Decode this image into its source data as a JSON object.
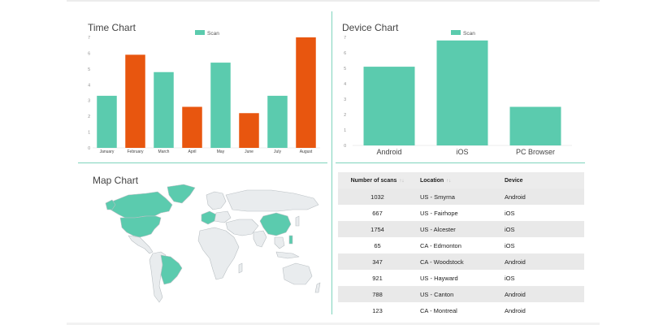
{
  "colors": {
    "teal": "#5bcbae",
    "orange": "#e8560f",
    "divider": "#7fd3bd",
    "map_land": "#e9ecee",
    "map_highlight": "#5bcbae"
  },
  "time_chart": {
    "title": "Time Chart",
    "chart_data": {
      "type": "bar",
      "title": "Time Chart",
      "legend": "Scan",
      "legend_position": "top-center",
      "categories": [
        "January",
        "February",
        "March",
        "April",
        "May",
        "June",
        "July",
        "August"
      ],
      "values": [
        3.3,
        5.9,
        4.8,
        2.6,
        5.4,
        2.2,
        3.3,
        7
      ],
      "bar_colors": [
        "teal",
        "orange",
        "teal",
        "orange",
        "teal",
        "orange",
        "teal",
        "orange"
      ],
      "y_ticks": [
        "0",
        "1",
        "2",
        "3",
        "4",
        "5",
        "6",
        "7"
      ],
      "ylim": [
        0,
        7
      ]
    }
  },
  "device_chart": {
    "title": "Device Chart",
    "chart_data": {
      "type": "bar",
      "title": "Device Chart",
      "legend": "Scan",
      "legend_position": "top-center",
      "categories": [
        "Android",
        "iOS",
        "PC Browser"
      ],
      "values": [
        5.1,
        6.8,
        2.5
      ],
      "y_ticks": [
        "0",
        "1",
        "2",
        "3",
        "4",
        "5",
        "6",
        "7"
      ],
      "ylim": [
        0,
        7
      ]
    }
  },
  "map_chart": {
    "title": "Map Chart",
    "highlighted_regions": [
      "North America",
      "Greenland",
      "Brazil",
      "Western Europe",
      "China",
      "Philippines"
    ]
  },
  "scan_table": {
    "headers": {
      "scans": "Number of scans",
      "location": "Location",
      "device": "Device",
      "sort_symbol": "↑↓"
    },
    "rows": [
      {
        "scans": "1032",
        "location": "US - Smyrna",
        "device": "Android"
      },
      {
        "scans": "667",
        "location": "US - Fairhope",
        "device": "iOS"
      },
      {
        "scans": "1754",
        "location": "US - Alcester",
        "device": "iOS"
      },
      {
        "scans": "65",
        "location": "CA - Edmonton",
        "device": "iOS"
      },
      {
        "scans": "347",
        "location": "CA - Woodstock",
        "device": "Android"
      },
      {
        "scans": "921",
        "location": "US - Hayward",
        "device": "iOS"
      },
      {
        "scans": "788",
        "location": "US - Canton",
        "device": "Android"
      },
      {
        "scans": "123",
        "location": "CA - Montreal",
        "device": "Android"
      }
    ]
  }
}
